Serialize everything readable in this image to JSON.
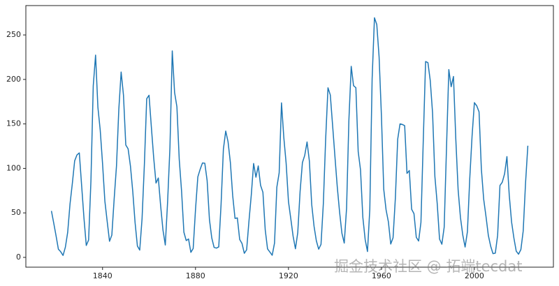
{
  "chart_data": {
    "type": "line",
    "color": "#1f77b4",
    "watermark": "掘金技术社区 @ 拓端tecdat",
    "x": [
      1818,
      1819,
      1820,
      1821,
      1822,
      1823,
      1824,
      1825,
      1826,
      1827,
      1828,
      1829,
      1830,
      1831,
      1832,
      1833,
      1834,
      1835,
      1836,
      1837,
      1838,
      1839,
      1840,
      1841,
      1842,
      1843,
      1844,
      1845,
      1846,
      1847,
      1848,
      1849,
      1850,
      1851,
      1852,
      1853,
      1854,
      1855,
      1856,
      1857,
      1858,
      1859,
      1860,
      1861,
      1862,
      1863,
      1864,
      1865,
      1866,
      1867,
      1868,
      1869,
      1870,
      1871,
      1872,
      1873,
      1874,
      1875,
      1876,
      1877,
      1878,
      1879,
      1880,
      1881,
      1882,
      1883,
      1884,
      1885,
      1886,
      1887,
      1888,
      1889,
      1890,
      1891,
      1892,
      1893,
      1894,
      1895,
      1896,
      1897,
      1898,
      1899,
      1900,
      1901,
      1902,
      1903,
      1904,
      1905,
      1906,
      1907,
      1908,
      1909,
      1910,
      1911,
      1912,
      1913,
      1914,
      1915,
      1916,
      1917,
      1918,
      1919,
      1920,
      1921,
      1922,
      1923,
      1924,
      1925,
      1926,
      1927,
      1928,
      1929,
      1930,
      1931,
      1932,
      1933,
      1934,
      1935,
      1936,
      1937,
      1938,
      1939,
      1940,
      1941,
      1942,
      1943,
      1944,
      1945,
      1946,
      1947,
      1948,
      1949,
      1950,
      1951,
      1952,
      1953,
      1954,
      1955,
      1956,
      1957,
      1958,
      1959,
      1960,
      1961,
      1962,
      1963,
      1964,
      1965,
      1966,
      1967,
      1968,
      1969,
      1970,
      1971,
      1972,
      1973,
      1974,
      1975,
      1976,
      1977,
      1978,
      1979,
      1980,
      1981,
      1982,
      1983,
      1984,
      1985,
      1986,
      1987,
      1988,
      1989,
      1990,
      1991,
      1992,
      1993,
      1994,
      1995,
      1996,
      1997,
      1998,
      1999,
      2000,
      2001,
      2002,
      2003,
      2004,
      2005,
      2006,
      2007,
      2008,
      2009,
      2010,
      2011,
      2012,
      2013,
      2014,
      2015,
      2016,
      2017,
      2018,
      2019,
      2020,
      2021,
      2022,
      2023
    ],
    "values": [
      52.2,
      38.5,
      24.2,
      9.2,
      6.3,
      2.2,
      11.4,
      28.2,
      59.9,
      83.0,
      108.5,
      115.2,
      117.4,
      80.8,
      44.3,
      13.4,
      19.5,
      85.8,
      192.7,
      227.3,
      168.7,
      143.0,
      105.5,
      63.3,
      40.3,
      18.1,
      25.1,
      65.8,
      102.7,
      166.3,
      208.3,
      182.5,
      126.3,
      122.0,
      102.7,
      74.1,
      39.0,
      12.7,
      8.2,
      43.4,
      104.4,
      178.3,
      182.2,
      146.6,
      112.1,
      83.5,
      89.2,
      57.8,
      30.7,
      13.9,
      62.8,
      123.6,
      232.0,
      185.3,
      169.2,
      110.1,
      74.5,
      28.3,
      18.9,
      20.7,
      5.7,
      10.0,
      53.7,
      90.5,
      99.0,
      106.1,
      105.8,
      86.3,
      42.4,
      21.8,
      11.2,
      10.4,
      11.8,
      59.5,
      121.7,
      142.0,
      130.0,
      106.6,
      69.4,
      43.8,
      44.4,
      20.2,
      15.7,
      4.6,
      8.5,
      40.8,
      70.1,
      105.5,
      90.1,
      102.8,
      80.9,
      73.2,
      30.9,
      9.5,
      6.0,
      2.4,
      16.1,
      79.0,
      95.0,
      173.6,
      134.6,
      105.7,
      62.7,
      43.5,
      23.7,
      9.7,
      27.9,
      74.0,
      106.5,
      114.7,
      129.7,
      108.2,
      59.4,
      35.1,
      18.6,
      9.2,
      14.6,
      60.2,
      132.8,
      190.6,
      182.6,
      148.0,
      113.0,
      79.2,
      50.8,
      27.1,
      16.1,
      55.3,
      154.3,
      214.7,
      193.0,
      190.7,
      118.9,
      98.3,
      45.0,
      20.1,
      6.6,
      54.2,
      200.7,
      269.3,
      261.7,
      225.1,
      159.0,
      76.4,
      53.4,
      39.9,
      15.0,
      22.0,
      66.8,
      132.9,
      150.0,
      149.4,
      148.0,
      94.4,
      97.6,
      54.1,
      49.2,
      22.5,
      18.4,
      39.3,
      131.0,
      220.1,
      218.9,
      198.9,
      162.4,
      91.0,
      60.5,
      20.6,
      14.8,
      33.9,
      123.0,
      211.1,
      191.8,
      203.3,
      133.0,
      76.1,
      44.9,
      25.1,
      11.6,
      28.9,
      88.3,
      136.3,
      173.9,
      170.4,
      163.6,
      99.3,
      65.3,
      45.8,
      24.7,
      12.6,
      4.2,
      4.8,
      24.9,
      80.8,
      84.5,
      94.0,
      113.3,
      69.8,
      39.8,
      21.7,
      7.0,
      3.6,
      8.8,
      29.6,
      83.2,
      125.5
    ],
    "xlim": [
      1807,
      2034
    ],
    "ylim": [
      -11,
      283
    ],
    "xticks": [
      1840,
      1880,
      1920,
      1960,
      2000
    ],
    "yticks": [
      0,
      50,
      100,
      150,
      200,
      250
    ]
  }
}
